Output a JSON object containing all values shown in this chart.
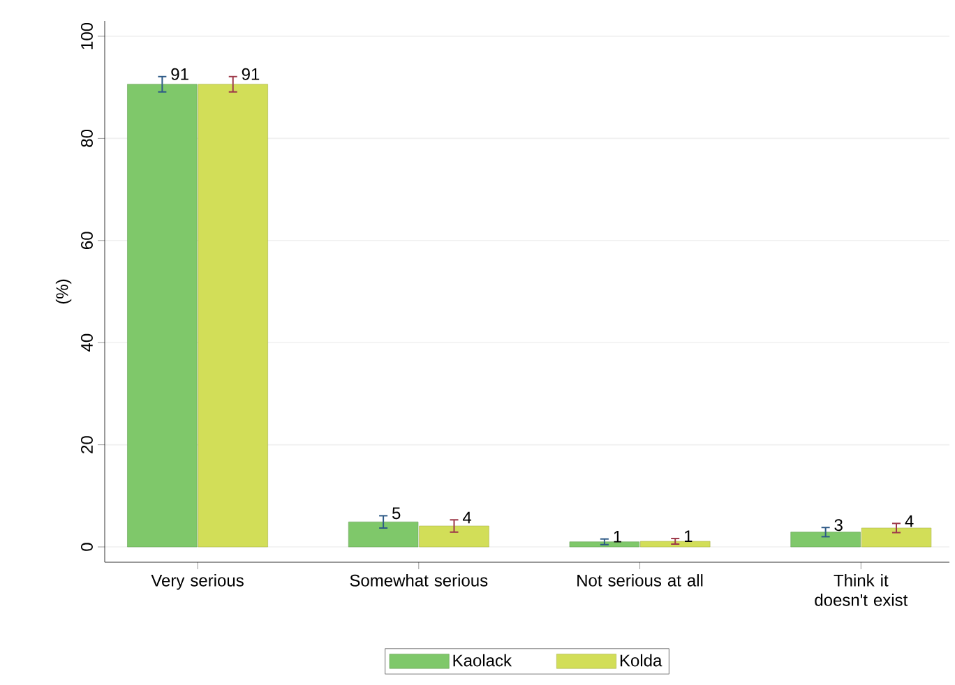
{
  "chart_data": {
    "type": "bar",
    "ylabel": "(%)",
    "categories": [
      "Very serious",
      "Somewhat serious",
      "Not serious at all",
      "Think it doesn't exist"
    ],
    "series": [
      {
        "name": "Kaolack",
        "color": "#7fc86a",
        "values": [
          90.6,
          4.9,
          1.0,
          2.9
        ],
        "errors": [
          1.5,
          1.2,
          0.55,
          0.9
        ],
        "value_labels": [
          "91",
          "5",
          "1",
          "3"
        ]
      },
      {
        "name": "Kolda",
        "color": "#d2de58",
        "values": [
          90.6,
          4.1,
          1.1,
          3.7
        ],
        "errors": [
          1.5,
          1.2,
          0.55,
          0.9
        ],
        "value_labels": [
          "91",
          "4",
          "1",
          "4"
        ]
      }
    ],
    "ylim": [
      -3,
      103
    ],
    "yticks": [
      0,
      20,
      40,
      60,
      80,
      100
    ],
    "grid": "y",
    "legend": "bottom"
  }
}
